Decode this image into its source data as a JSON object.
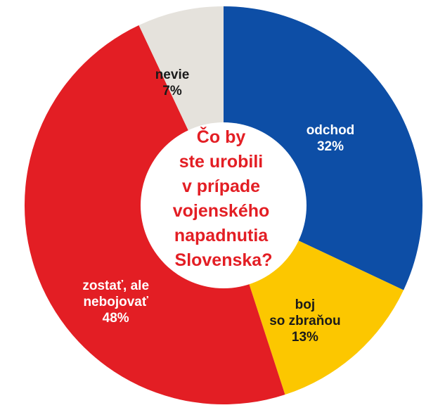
{
  "chart_data": {
    "type": "pie",
    "variant": "donut",
    "title_lines": [
      "Čo by",
      "ste urobili",
      "v prípade",
      "vojenského",
      "napadnutia",
      "Slovenska?"
    ],
    "slices": [
      {
        "lines": [
          "odchod",
          "32%"
        ],
        "value": 32,
        "color": "#0d4ea6",
        "text_color": "#ffffff"
      },
      {
        "lines": [
          "boj",
          "so zbraňou",
          "13%"
        ],
        "value": 13,
        "color": "#fcc700",
        "text_color": "#1a1a1a"
      },
      {
        "lines": [
          "zostať, ale",
          "nebojovať",
          "48%"
        ],
        "value": 48,
        "color": "#e31e24",
        "text_color": "#ffffff"
      },
      {
        "lines": [
          "nevie",
          "7%"
        ],
        "value": 7,
        "color": "#e5e2dc",
        "text_color": "#1a1a1a"
      }
    ]
  }
}
